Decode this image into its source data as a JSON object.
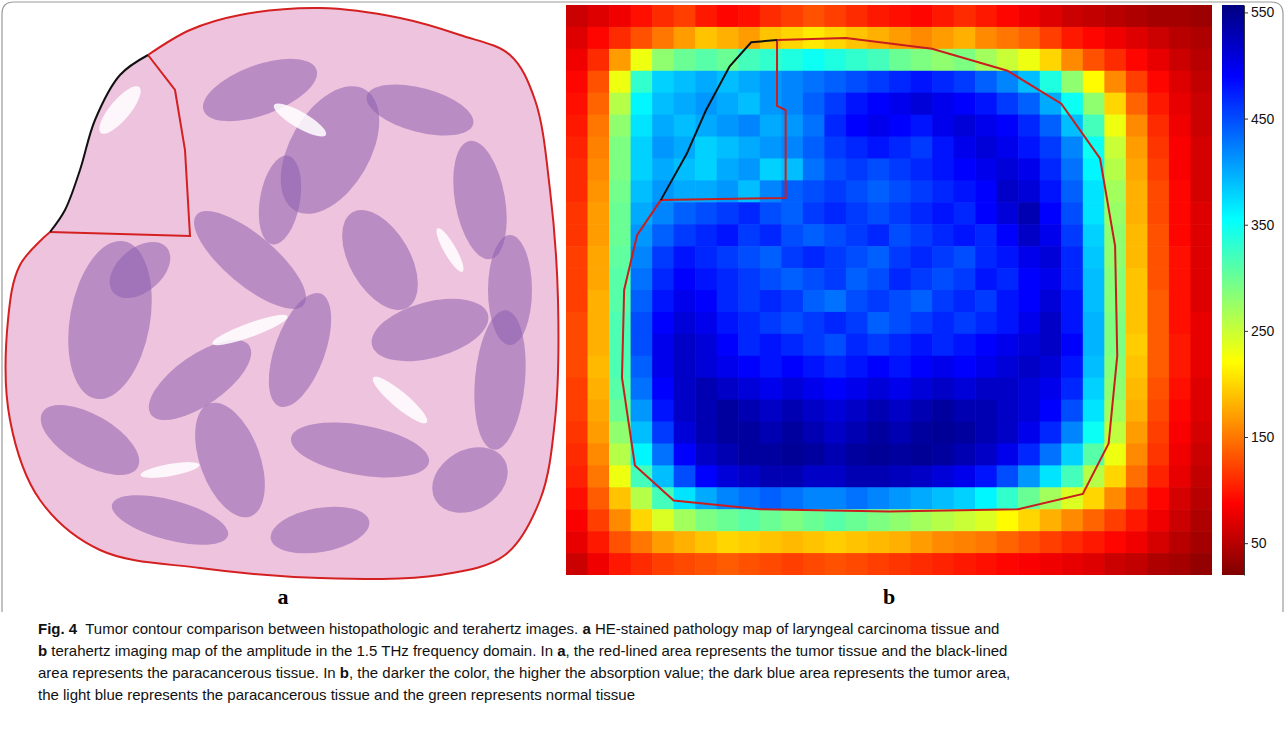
{
  "chart_data": {
    "type": "heatmap",
    "tick_labels": false,
    "cells": [
      [
        60,
        70,
        80,
        95,
        110,
        120,
        100,
        90,
        95,
        110,
        120,
        130,
        120,
        110,
        100,
        95,
        90,
        100,
        110,
        100,
        90,
        80,
        70,
        60,
        55,
        50,
        45,
        40,
        40,
        35
      ],
      [
        70,
        90,
        110,
        130,
        150,
        170,
        190,
        180,
        170,
        190,
        200,
        210,
        200,
        190,
        180,
        170,
        160,
        170,
        180,
        160,
        150,
        140,
        120,
        100,
        90,
        80,
        70,
        60,
        50,
        45
      ],
      [
        80,
        110,
        170,
        230,
        280,
        300,
        310,
        300,
        320,
        330,
        340,
        350,
        340,
        330,
        320,
        300,
        290,
        280,
        290,
        270,
        250,
        230,
        200,
        160,
        130,
        110,
        90,
        75,
        60,
        50
      ],
      [
        90,
        130,
        230,
        330,
        380,
        390,
        400,
        390,
        400,
        410,
        420,
        430,
        440,
        450,
        460,
        470,
        480,
        470,
        460,
        440,
        420,
        390,
        340,
        280,
        220,
        160,
        120,
        90,
        70,
        55
      ],
      [
        95,
        140,
        260,
        360,
        390,
        400,
        410,
        400,
        390,
        410,
        420,
        440,
        460,
        480,
        490,
        500,
        510,
        500,
        490,
        480,
        460,
        440,
        400,
        350,
        280,
        200,
        140,
        100,
        75,
        60
      ],
      [
        100,
        150,
        280,
        370,
        400,
        390,
        400,
        410,
        420,
        400,
        410,
        430,
        470,
        490,
        500,
        490,
        480,
        500,
        510,
        500,
        490,
        470,
        440,
        390,
        320,
        230,
        160,
        110,
        80,
        60
      ],
      [
        105,
        155,
        290,
        380,
        410,
        400,
        380,
        390,
        400,
        410,
        420,
        440,
        460,
        470,
        480,
        470,
        460,
        480,
        500,
        510,
        500,
        480,
        460,
        420,
        350,
        250,
        170,
        115,
        85,
        65
      ],
      [
        110,
        160,
        290,
        380,
        400,
        390,
        380,
        400,
        410,
        380,
        390,
        430,
        450,
        460,
        450,
        460,
        470,
        480,
        490,
        500,
        510,
        500,
        470,
        430,
        360,
        260,
        175,
        120,
        85,
        65
      ],
      [
        110,
        165,
        295,
        390,
        410,
        400,
        400,
        410,
        390,
        420,
        440,
        450,
        460,
        450,
        440,
        450,
        460,
        470,
        480,
        490,
        520,
        510,
        480,
        440,
        370,
        270,
        180,
        125,
        90,
        65
      ],
      [
        115,
        170,
        300,
        400,
        420,
        440,
        450,
        460,
        470,
        450,
        440,
        460,
        470,
        460,
        450,
        460,
        470,
        480,
        470,
        490,
        510,
        530,
        490,
        450,
        370,
        275,
        180,
        125,
        90,
        70
      ],
      [
        115,
        170,
        300,
        410,
        440,
        460,
        470,
        480,
        460,
        470,
        450,
        440,
        450,
        460,
        470,
        450,
        460,
        470,
        480,
        470,
        490,
        520,
        500,
        460,
        380,
        280,
        185,
        130,
        90,
        70
      ],
      [
        120,
        175,
        305,
        420,
        460,
        480,
        470,
        460,
        450,
        440,
        460,
        470,
        460,
        450,
        440,
        460,
        470,
        460,
        450,
        470,
        480,
        500,
        510,
        470,
        385,
        280,
        185,
        130,
        95,
        70
      ],
      [
        120,
        175,
        310,
        430,
        470,
        490,
        480,
        470,
        460,
        450,
        440,
        450,
        460,
        440,
        450,
        470,
        460,
        450,
        460,
        480,
        470,
        490,
        500,
        470,
        390,
        285,
        190,
        130,
        95,
        70
      ],
      [
        120,
        180,
        310,
        440,
        480,
        500,
        490,
        470,
        460,
        470,
        460,
        440,
        430,
        450,
        460,
        450,
        440,
        460,
        470,
        460,
        480,
        490,
        510,
        480,
        390,
        285,
        190,
        135,
        95,
        70
      ],
      [
        125,
        180,
        315,
        450,
        490,
        510,
        500,
        480,
        470,
        460,
        450,
        460,
        470,
        460,
        440,
        450,
        460,
        470,
        460,
        470,
        480,
        500,
        520,
        480,
        395,
        290,
        190,
        135,
        95,
        75
      ],
      [
        125,
        180,
        315,
        450,
        500,
        520,
        510,
        490,
        470,
        480,
        470,
        460,
        450,
        470,
        460,
        470,
        480,
        470,
        480,
        490,
        500,
        510,
        520,
        490,
        395,
        290,
        195,
        135,
        100,
        75
      ],
      [
        125,
        185,
        315,
        440,
        500,
        520,
        510,
        500,
        490,
        480,
        490,
        480,
        470,
        480,
        490,
        480,
        490,
        500,
        490,
        500,
        510,
        520,
        510,
        480,
        390,
        285,
        190,
        135,
        100,
        75
      ],
      [
        120,
        180,
        310,
        430,
        490,
        520,
        530,
        520,
        510,
        500,
        510,
        500,
        490,
        500,
        510,
        500,
        510,
        520,
        510,
        520,
        520,
        510,
        500,
        470,
        380,
        280,
        185,
        130,
        95,
        70
      ],
      [
        120,
        175,
        300,
        410,
        480,
        520,
        530,
        540,
        530,
        520,
        530,
        520,
        510,
        520,
        530,
        520,
        530,
        540,
        530,
        530,
        520,
        510,
        490,
        450,
        370,
        270,
        180,
        125,
        90,
        70
      ],
      [
        115,
        170,
        280,
        390,
        460,
        510,
        530,
        540,
        540,
        530,
        540,
        530,
        520,
        530,
        540,
        530,
        540,
        545,
        540,
        530,
        520,
        500,
        470,
        420,
        350,
        255,
        170,
        120,
        85,
        65
      ],
      [
        110,
        160,
        260,
        360,
        430,
        490,
        520,
        530,
        540,
        540,
        545,
        540,
        530,
        540,
        545,
        540,
        545,
        540,
        530,
        520,
        500,
        470,
        430,
        380,
        310,
        230,
        160,
        115,
        80,
        60
      ],
      [
        105,
        150,
        230,
        320,
        390,
        450,
        490,
        510,
        520,
        530,
        530,
        520,
        520,
        530,
        530,
        525,
        520,
        510,
        500,
        480,
        450,
        410,
        370,
        320,
        260,
        200,
        145,
        105,
        75,
        55
      ],
      [
        95,
        135,
        190,
        260,
        320,
        370,
        400,
        420,
        430,
        440,
        430,
        420,
        420,
        430,
        420,
        410,
        400,
        390,
        380,
        360,
        330,
        300,
        270,
        240,
        200,
        160,
        120,
        90,
        65,
        50
      ],
      [
        85,
        120,
        160,
        200,
        240,
        270,
        290,
        300,
        310,
        300,
        290,
        300,
        310,
        300,
        290,
        280,
        270,
        260,
        250,
        240,
        220,
        200,
        180,
        160,
        140,
        120,
        100,
        80,
        60,
        45
      ],
      [
        75,
        100,
        130,
        150,
        170,
        180,
        190,
        200,
        195,
        190,
        185,
        190,
        195,
        190,
        185,
        180,
        170,
        160,
        155,
        150,
        140,
        130,
        120,
        110,
        100,
        90,
        80,
        65,
        50,
        40
      ],
      [
        60,
        80,
        100,
        110,
        120,
        125,
        130,
        135,
        130,
        125,
        120,
        125,
        130,
        125,
        120,
        115,
        110,
        105,
        100,
        95,
        90,
        85,
        80,
        75,
        70,
        60,
        55,
        45,
        40,
        30
      ]
    ],
    "colorbar": {
      "range": [
        20,
        557
      ],
      "ticks": [
        50,
        150,
        250,
        350,
        450,
        550
      ]
    }
  },
  "panels": [
    "a",
    "b"
  ],
  "caption": [
    [
      "Fig. 4",
      "  Tumor contour comparison between histopathologic and terahertz images. ",
      "a",
      " HE-stained pathology map of laryngeal carcinoma tissue and"
    ],
    [
      "b",
      " terahertz imaging map of the amplitude in the 1.5 THz frequency domain. In ",
      "a",
      ", the red-lined area represents the tumor tissue and the black-lined"
    ],
    [
      "area represents the paracancerous tissue. In ",
      "b",
      ", the darker the color, the higher the absorption value; the dark blue area represents the tumor area,"
    ],
    [
      "the light blue represents the paracancerous tissue and the green represents normal tissue"
    ]
  ]
}
